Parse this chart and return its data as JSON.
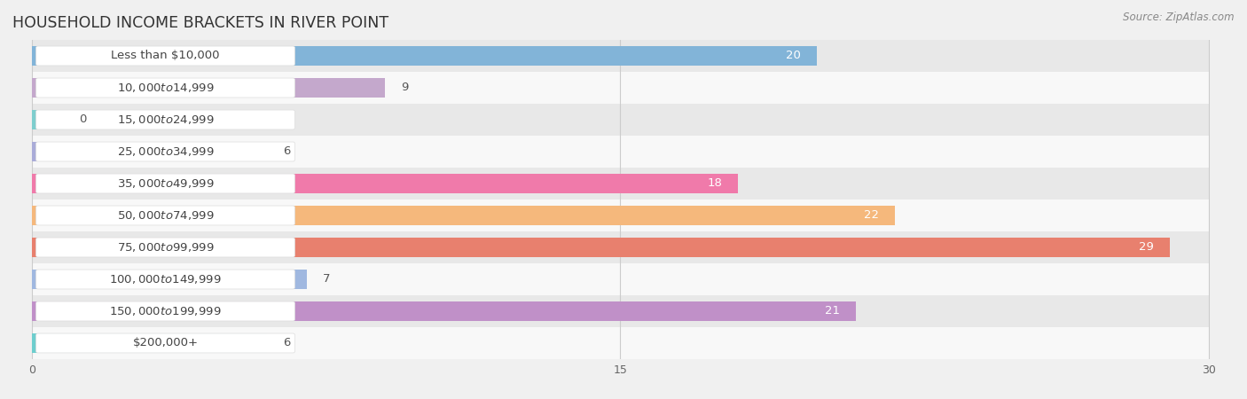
{
  "title": "HOUSEHOLD INCOME BRACKETS IN RIVER POINT",
  "source": "Source: ZipAtlas.com",
  "categories": [
    "Less than $10,000",
    "$10,000 to $14,999",
    "$15,000 to $24,999",
    "$25,000 to $34,999",
    "$35,000 to $49,999",
    "$50,000 to $74,999",
    "$75,000 to $99,999",
    "$100,000 to $149,999",
    "$150,000 to $199,999",
    "$200,000+"
  ],
  "values": [
    20,
    9,
    0,
    6,
    18,
    22,
    29,
    7,
    21,
    6
  ],
  "bar_colors": [
    "#82b4d8",
    "#c4a8cc",
    "#7ecece",
    "#aaacd8",
    "#f07aaa",
    "#f5b87c",
    "#e8806e",
    "#a0b8e0",
    "#c090c8",
    "#6ecece"
  ],
  "xlim": [
    0,
    30
  ],
  "xticks": [
    0,
    15,
    30
  ],
  "bar_height": 0.6,
  "background_color": "#f0f0f0",
  "row_bg_even": "#f8f8f8",
  "row_bg_odd": "#e8e8e8",
  "label_fontsize": 9.5,
  "value_fontsize": 9.5,
  "title_fontsize": 12.5,
  "label_badge_color": "#ffffff",
  "label_text_color": "#444444",
  "value_inside_color": "#ffffff",
  "value_outside_color": "#555555"
}
